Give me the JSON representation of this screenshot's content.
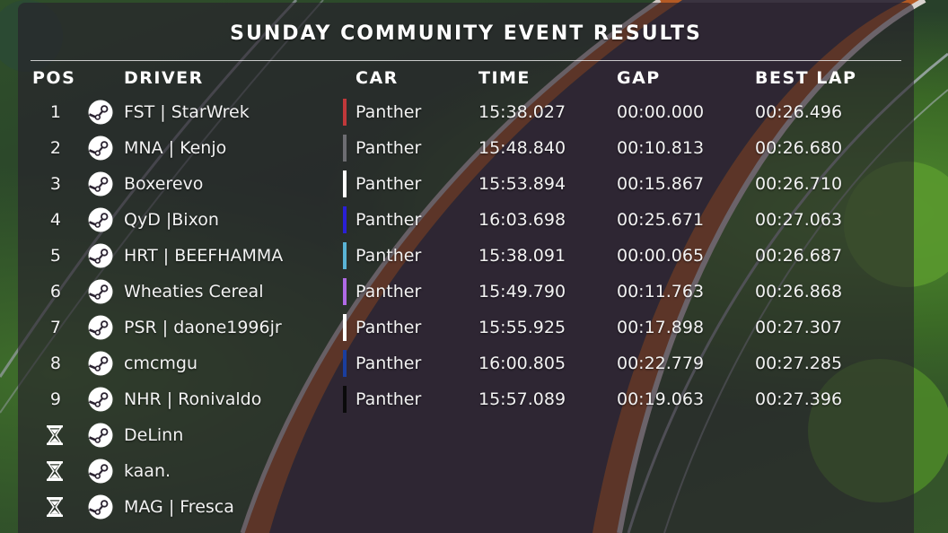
{
  "title": "SUNDAY COMMUNITY EVENT RESULTS",
  "columns": {
    "pos": "POS",
    "driver": "DRIVER",
    "car": "CAR",
    "time": "TIME",
    "gap": "GAP",
    "best_lap": "BEST LAP"
  },
  "platform_icon": "steam-icon",
  "dnf_icon": "hourglass-icon",
  "results": [
    {
      "pos": "1",
      "driver": "FST | StarWrek",
      "car": "Panther",
      "car_color": "#c0383a",
      "time": "15:38.027",
      "gap": "00:00.000",
      "best_lap": "00:26.496"
    },
    {
      "pos": "2",
      "driver": "MNA | Kenjo",
      "car": "Panther",
      "car_color": "#6d6d72",
      "time": "15:48.840",
      "gap": "00:10.813",
      "best_lap": "00:26.680"
    },
    {
      "pos": "3",
      "driver": "Boxerevo",
      "car": "Panther",
      "car_color": "#ffffff",
      "time": "15:53.894",
      "gap": "00:15.867",
      "best_lap": "00:26.710"
    },
    {
      "pos": "4",
      "driver": "QyD |Bixon",
      "car": "Panther",
      "car_color": "#2a1fd6",
      "time": "16:03.698",
      "gap": "00:25.671",
      "best_lap": "00:27.063"
    },
    {
      "pos": "5",
      "driver": "HRT | BEEFHAMMA",
      "car": "Panther",
      "car_color": "#5ab4d6",
      "time": "15:38.091",
      "gap": "00:00.065",
      "best_lap": "00:26.687"
    },
    {
      "pos": "6",
      "driver": "Wheaties Cereal",
      "car": "Panther",
      "car_color": "#b06ae6",
      "time": "15:49.790",
      "gap": "00:11.763",
      "best_lap": "00:26.868"
    },
    {
      "pos": "7",
      "driver": "PSR | daone1996jr",
      "car": "Panther",
      "car_color": "#ffffff",
      "time": "15:55.925",
      "gap": "00:17.898",
      "best_lap": "00:27.307"
    },
    {
      "pos": "8",
      "driver": "cmcmgu",
      "car": "Panther",
      "car_color": "#1a3e9e",
      "time": "16:00.805",
      "gap": "00:22.779",
      "best_lap": "00:27.285"
    },
    {
      "pos": "9",
      "driver": "NHR | Ronivaldo",
      "car": "Panther",
      "car_color": "#0a0a0a",
      "time": "15:57.089",
      "gap": "00:19.063",
      "best_lap": "00:27.396"
    }
  ],
  "unfinished": [
    {
      "driver": "DeLinn"
    },
    {
      "driver": "kaan."
    },
    {
      "driver": "MAG | Fresca"
    }
  ]
}
